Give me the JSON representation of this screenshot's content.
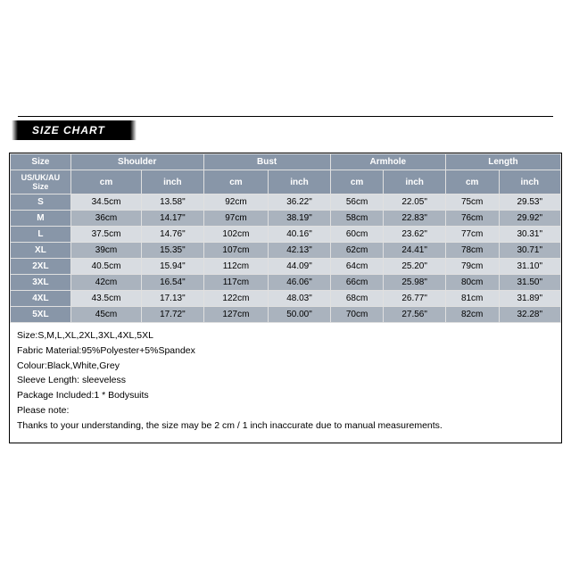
{
  "banner_label": "SIZE CHART",
  "table": {
    "header_bg": "#8896a8",
    "header_color": "#ffffff",
    "row_even_bg": "#aab3be",
    "row_odd_bg": "#d8dce1",
    "border_color": "#e0e0e0",
    "corner_label": "Size",
    "corner_sub": "US/UK/AU Size",
    "groups": [
      {
        "label": "Shoulder",
        "sub": [
          "cm",
          "inch"
        ]
      },
      {
        "label": "Bust",
        "sub": [
          "cm",
          "inch"
        ]
      },
      {
        "label": "Armhole",
        "sub": [
          "cm",
          "inch"
        ]
      },
      {
        "label": "Length",
        "sub": [
          "cm",
          "inch"
        ]
      }
    ],
    "rows": [
      {
        "size": "S",
        "cells": [
          "34.5cm",
          "13.58\"",
          "92cm",
          "36.22\"",
          "56cm",
          "22.05\"",
          "75cm",
          "29.53\""
        ]
      },
      {
        "size": "M",
        "cells": [
          "36cm",
          "14.17\"",
          "97cm",
          "38.19\"",
          "58cm",
          "22.83\"",
          "76cm",
          "29.92\""
        ]
      },
      {
        "size": "L",
        "cells": [
          "37.5cm",
          "14.76\"",
          "102cm",
          "40.16\"",
          "60cm",
          "23.62\"",
          "77cm",
          "30.31\""
        ]
      },
      {
        "size": "XL",
        "cells": [
          "39cm",
          "15.35\"",
          "107cm",
          "42.13\"",
          "62cm",
          "24.41\"",
          "78cm",
          "30.71\""
        ]
      },
      {
        "size": "2XL",
        "cells": [
          "40.5cm",
          "15.94\"",
          "112cm",
          "44.09\"",
          "64cm",
          "25.20\"",
          "79cm",
          "31.10\""
        ]
      },
      {
        "size": "3XL",
        "cells": [
          "42cm",
          "16.54\"",
          "117cm",
          "46.06\"",
          "66cm",
          "25.98\"",
          "80cm",
          "31.50\""
        ]
      },
      {
        "size": "4XL",
        "cells": [
          "43.5cm",
          "17.13\"",
          "122cm",
          "48.03\"",
          "68cm",
          "26.77\"",
          "81cm",
          "31.89\""
        ]
      },
      {
        "size": "5XL",
        "cells": [
          "45cm",
          "17.72\"",
          "127cm",
          "50.00\"",
          "70cm",
          "27.56\"",
          "82cm",
          "32.28\""
        ]
      }
    ]
  },
  "notes": [
    "Size:S,M,L,XL,2XL,3XL,4XL,5XL",
    "Fabric Material:95%Polyester+5%Spandex",
    "Colour:Black,White,Grey",
    "Sleeve Length:  sleeveless",
    "Package Included:1 * Bodysuits",
    "Please note:",
    "Thanks to your understanding, the size may be 2 cm / 1 inch inaccurate due to manual measurements."
  ]
}
